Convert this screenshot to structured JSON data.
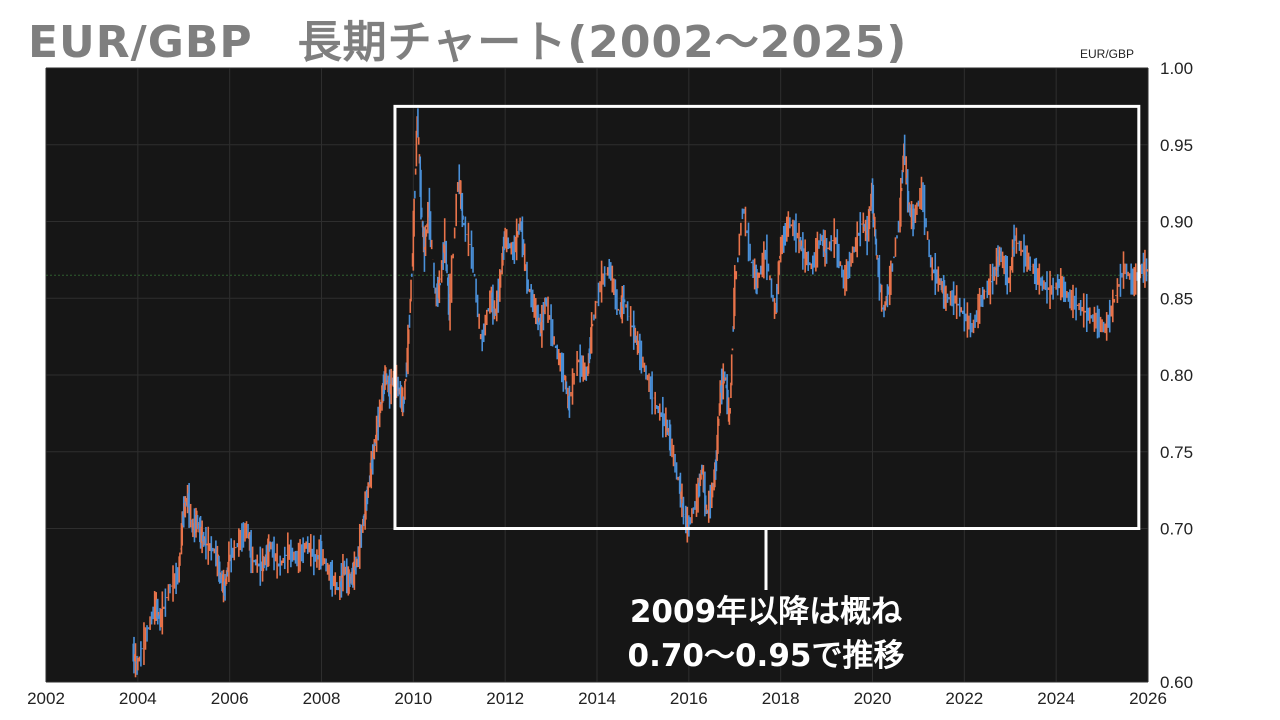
{
  "title": "EUR/GBP　長期チャート(2002～2025)",
  "chart_data": {
    "type": "line",
    "series_label": "EUR/GBP",
    "xlim": [
      2002,
      2026
    ],
    "ylim": [
      0.6,
      1.0
    ],
    "x_ticks": [
      "2002",
      "2004",
      "2006",
      "2008",
      "2010",
      "2012",
      "2014",
      "2016",
      "2018",
      "2020",
      "2022",
      "2024",
      "2026"
    ],
    "y_ticks": [
      "1.00",
      "0.95",
      "0.90",
      "0.85",
      "0.80",
      "0.75",
      "0.70",
      "0.60"
    ],
    "y_tick_values": [
      1.0,
      0.95,
      0.9,
      0.85,
      0.8,
      0.75,
      0.7,
      0.6
    ],
    "reference_line": 0.865,
    "colors": {
      "up": "#e8734a",
      "down": "#4a90d9",
      "background": "#161616",
      "grid": "#2e2e2e",
      "reference": "#2f5f2f"
    },
    "series": [
      {
        "x": [
          2003.9,
          2004.0,
          2004.2,
          2004.4,
          2004.5,
          2004.7,
          2004.9,
          2005.0,
          2005.1,
          2005.2,
          2005.3,
          2005.4,
          2005.5,
          2005.7,
          2005.8,
          2005.9,
          2006.0,
          2006.2,
          2006.4,
          2006.5,
          2006.7,
          2006.8,
          2006.9,
          2007.1,
          2007.3,
          2007.5,
          2007.7,
          2007.9,
          2008.0,
          2008.2,
          2008.4,
          2008.5,
          2008.6,
          2008.7,
          2008.8,
          2008.9,
          2009.0,
          2009.1,
          2009.2,
          2009.3,
          2009.4,
          2009.5,
          2009.6,
          2009.7,
          2009.8,
          2009.9,
          2010.0,
          2010.1,
          2010.2,
          2010.25,
          2010.35,
          2010.5,
          2010.6,
          2010.7,
          2010.8,
          2011.0,
          2011.1,
          2011.3,
          2011.5,
          2011.7,
          2011.8,
          2011.9,
          2012.0,
          2012.2,
          2012.35,
          2012.5,
          2012.7,
          2012.8,
          2012.9,
          2013.1,
          2013.3,
          2013.4,
          2013.6,
          2013.8,
          2013.9,
          2014.1,
          2014.3,
          2014.5,
          2014.6,
          2014.8,
          2014.9,
          2015.1,
          2015.3,
          2015.5,
          2015.6,
          2015.8,
          2015.9,
          2016.0,
          2016.2,
          2016.3,
          2016.4,
          2016.5,
          2016.6,
          2016.7,
          2016.8,
          2016.9,
          2017.0,
          2017.2,
          2017.4,
          2017.5,
          2017.7,
          2017.9,
          2018.0,
          2018.2,
          2018.4,
          2018.5,
          2018.7,
          2018.9,
          2019.0,
          2019.2,
          2019.4,
          2019.6,
          2019.8,
          2019.9,
          2020.0,
          2020.1,
          2020.25,
          2020.4,
          2020.6,
          2020.7,
          2020.8,
          2020.9,
          2021.1,
          2021.3,
          2021.5,
          2021.6,
          2021.8,
          2022.0,
          2022.2,
          2022.4,
          2022.6,
          2022.7,
          2022.8,
          2023.0,
          2023.1,
          2023.3,
          2023.5,
          2023.7,
          2023.9,
          2024.1,
          2024.3,
          2024.5,
          2024.7,
          2024.9,
          2025.1,
          2025.3,
          2025.5,
          2025.7,
          2025.9,
          2026.0
        ],
        "y": [
          0.62,
          0.61,
          0.63,
          0.65,
          0.64,
          0.66,
          0.67,
          0.71,
          0.72,
          0.7,
          0.705,
          0.695,
          0.69,
          0.685,
          0.67,
          0.66,
          0.68,
          0.69,
          0.7,
          0.68,
          0.675,
          0.68,
          0.69,
          0.675,
          0.685,
          0.68,
          0.69,
          0.68,
          0.685,
          0.67,
          0.66,
          0.675,
          0.665,
          0.67,
          0.68,
          0.7,
          0.72,
          0.74,
          0.76,
          0.78,
          0.8,
          0.79,
          0.8,
          0.79,
          0.78,
          0.82,
          0.88,
          0.97,
          0.9,
          0.88,
          0.91,
          0.85,
          0.86,
          0.89,
          0.84,
          0.93,
          0.9,
          0.88,
          0.82,
          0.85,
          0.84,
          0.86,
          0.89,
          0.88,
          0.9,
          0.86,
          0.84,
          0.83,
          0.85,
          0.82,
          0.8,
          0.78,
          0.81,
          0.8,
          0.83,
          0.86,
          0.87,
          0.84,
          0.85,
          0.83,
          0.82,
          0.8,
          0.78,
          0.77,
          0.76,
          0.73,
          0.71,
          0.7,
          0.72,
          0.74,
          0.71,
          0.72,
          0.74,
          0.79,
          0.8,
          0.77,
          0.85,
          0.91,
          0.87,
          0.86,
          0.88,
          0.84,
          0.88,
          0.9,
          0.89,
          0.88,
          0.87,
          0.89,
          0.88,
          0.89,
          0.86,
          0.88,
          0.9,
          0.89,
          0.92,
          0.88,
          0.84,
          0.86,
          0.9,
          0.95,
          0.91,
          0.9,
          0.92,
          0.87,
          0.86,
          0.85,
          0.85,
          0.84,
          0.83,
          0.85,
          0.86,
          0.87,
          0.88,
          0.86,
          0.89,
          0.88,
          0.87,
          0.86,
          0.855,
          0.86,
          0.85,
          0.845,
          0.84,
          0.835,
          0.83,
          0.85,
          0.87,
          0.86,
          0.87,
          0.868
        ]
      }
    ],
    "annotations": [
      {
        "type": "box",
        "x": [
          2009.6,
          2025.8
        ],
        "y": [
          0.7,
          0.975
        ]
      },
      {
        "type": "text",
        "lines": [
          "2009年以降は概ね",
          "0.70～0.95で推移"
        ]
      }
    ]
  }
}
